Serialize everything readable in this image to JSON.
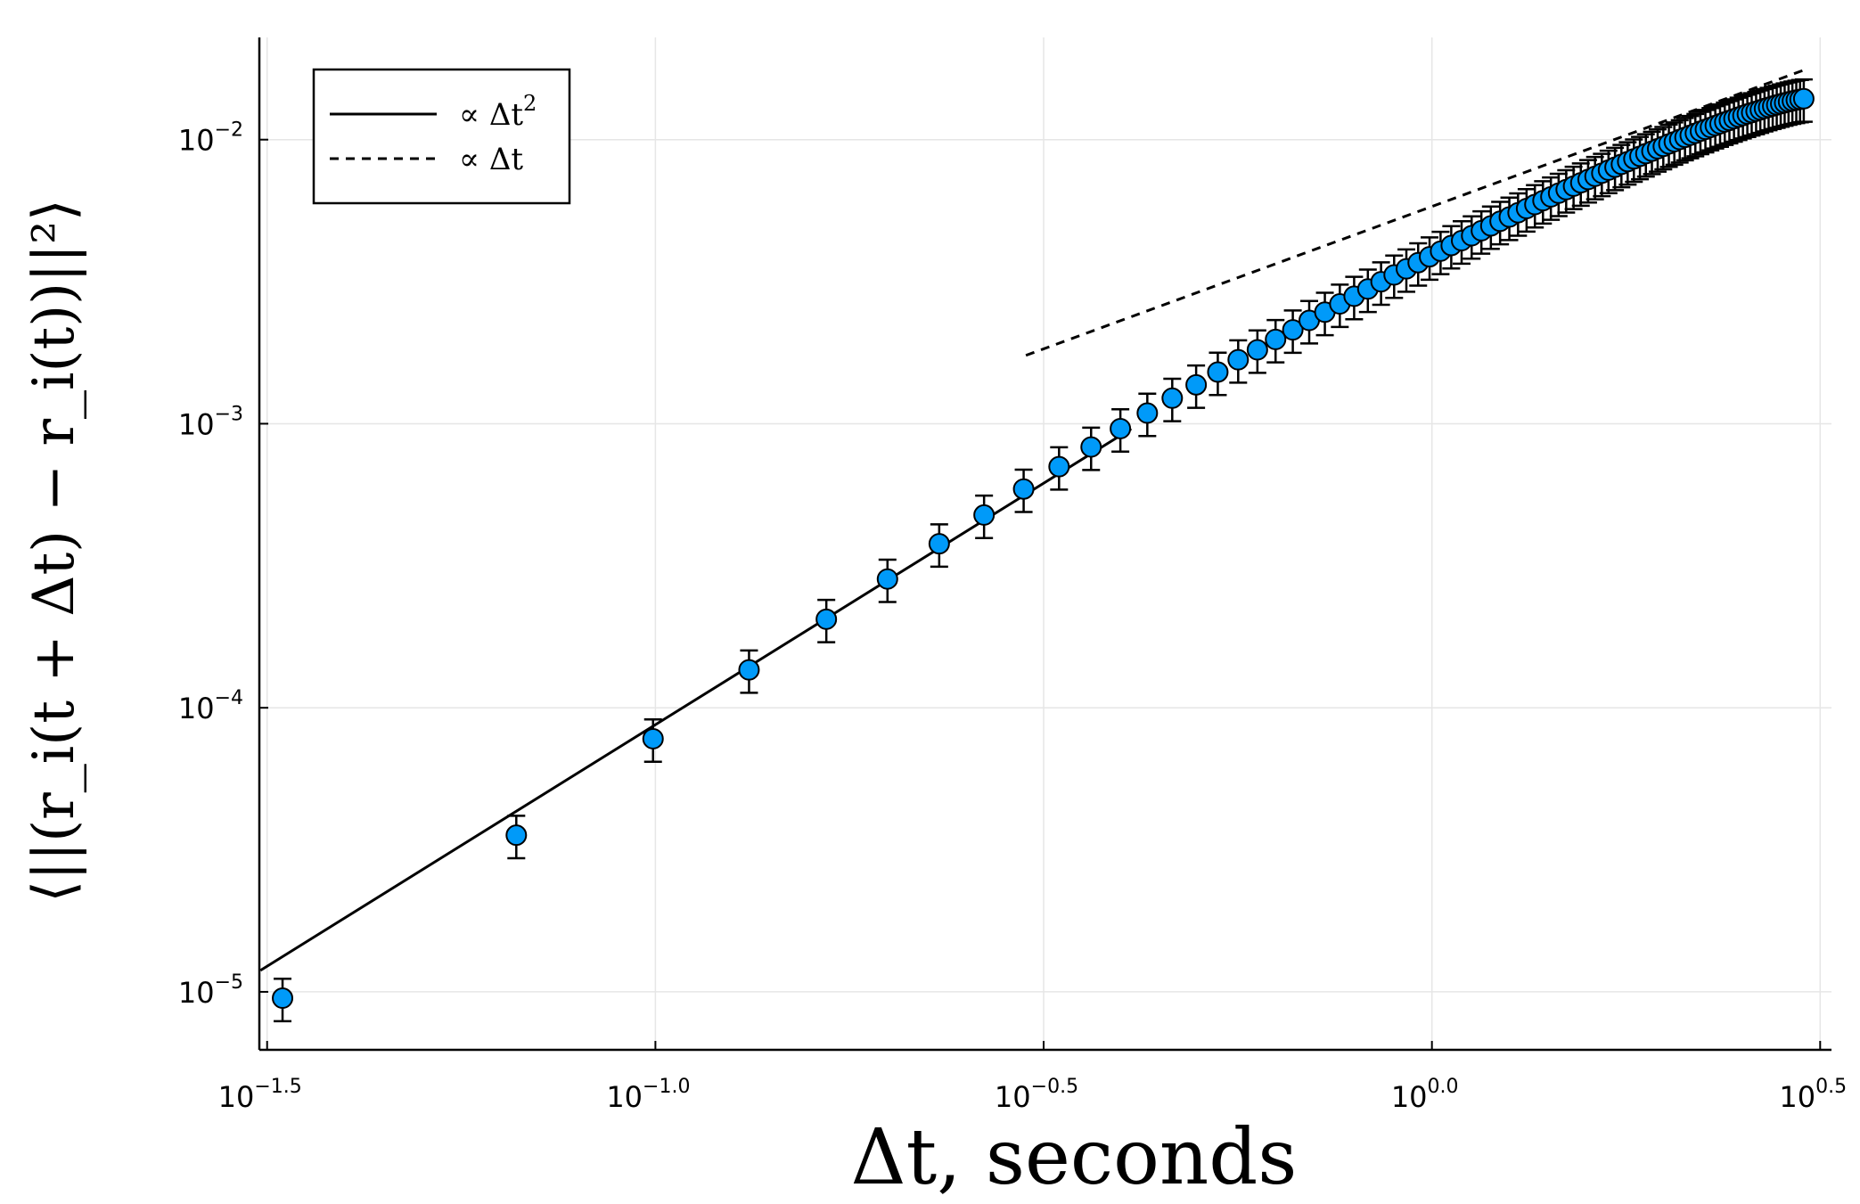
{
  "chart_data": {
    "type": "scatter",
    "xscale": "log10",
    "yscale": "log10",
    "grid": true,
    "legend_position": "top-left",
    "xlabel": "Δt, seconds",
    "ylabel": "⟨||(r_i(t + Δt) − r_i(t))||²⟩",
    "xlim": [
      0.0309,
      3.27
    ],
    "ylim": [
      6.25e-06,
      0.0229
    ],
    "xticks": [
      {
        "value": 0.03162,
        "base": "10",
        "exp": "−1.5"
      },
      {
        "value": 0.1,
        "base": "10",
        "exp": "−1.0"
      },
      {
        "value": 0.3162,
        "base": "10",
        "exp": "−0.5"
      },
      {
        "value": 1.0,
        "base": "10",
        "exp": "0.0"
      },
      {
        "value": 3.162,
        "base": "10",
        "exp": "0.5"
      }
    ],
    "yticks": [
      {
        "value": 1e-05,
        "base": "10",
        "exp": "−5"
      },
      {
        "value": 0.0001,
        "base": "10",
        "exp": "−4"
      },
      {
        "value": 0.001,
        "base": "10",
        "exp": "−3"
      },
      {
        "value": 0.01,
        "base": "10",
        "exp": "−2"
      }
    ],
    "legend": [
      {
        "label": "∝ Δt",
        "exp": "2",
        "style": "solid"
      },
      {
        "label": "∝ Δt",
        "exp": "",
        "style": "dashed"
      }
    ],
    "reference_lines": [
      {
        "style": "solid",
        "x": [
          0.031,
          0.41
        ],
        "y": [
          1.19e-05,
          0.00096
        ]
      },
      {
        "style": "dashed",
        "x": [
          0.3,
          3.0
        ],
        "y": [
          0.00174,
          0.0175
        ]
      }
    ],
    "marker_color": "#009AF9",
    "series": [
      {
        "x": [
          0.0331,
          0.0662,
          0.0993,
          0.132,
          0.166,
          0.199,
          0.232,
          0.265,
          0.298,
          0.331,
          0.364,
          0.397,
          0.43,
          0.463,
          0.497,
          0.53,
          0.563,
          0.596,
          0.629,
          0.662,
          0.695,
          0.728,
          0.761,
          0.794,
          0.827,
          0.86,
          0.894,
          0.927,
          0.96,
          0.993,
          1.026,
          1.059,
          1.092,
          1.125,
          1.158,
          1.191,
          1.224,
          1.258,
          1.291,
          1.324,
          1.357,
          1.39,
          1.423,
          1.456,
          1.489,
          1.522,
          1.555,
          1.589,
          1.622,
          1.655,
          1.688,
          1.721,
          1.754,
          1.787,
          1.82,
          1.853,
          1.886,
          1.92,
          1.953,
          1.986,
          2.019,
          2.052,
          2.085,
          2.118,
          2.151,
          2.184,
          2.217,
          2.25,
          2.284,
          2.317,
          2.35,
          2.383,
          2.416,
          2.449,
          2.482,
          2.515,
          2.548,
          2.581,
          2.615,
          2.648,
          2.681,
          2.714,
          2.747,
          2.78,
          2.813,
          2.846,
          2.879,
          2.912,
          2.946,
          2.979,
          3.012
        ],
        "y": [
          9.5e-06,
          3.56e-05,
          7.78e-05,
          0.000136,
          0.000205,
          0.000284,
          0.000378,
          0.000477,
          0.000589,
          0.000706,
          0.000828,
          0.000961,
          0.00109,
          0.00123,
          0.00137,
          0.00152,
          0.00168,
          0.00182,
          0.00198,
          0.00214,
          0.00231,
          0.00247,
          0.00264,
          0.00281,
          0.00298,
          0.00316,
          0.00334,
          0.00351,
          0.00369,
          0.00387,
          0.00405,
          0.00424,
          0.00441,
          0.00459,
          0.00478,
          0.00497,
          0.00516,
          0.00534,
          0.00553,
          0.00572,
          0.00591,
          0.0061,
          0.00629,
          0.00648,
          0.00667,
          0.00686,
          0.00705,
          0.00724,
          0.00743,
          0.00762,
          0.00781,
          0.008,
          0.00819,
          0.00837,
          0.00856,
          0.00874,
          0.00893,
          0.00911,
          0.00929,
          0.00947,
          0.00966,
          0.00983,
          0.01001,
          0.01019,
          0.01036,
          0.01053,
          0.01071,
          0.01087,
          0.01104,
          0.01121,
          0.01137,
          0.01154,
          0.01169,
          0.01185,
          0.01201,
          0.01216,
          0.01231,
          0.01245,
          0.01259,
          0.01273,
          0.01287,
          0.013,
          0.01313,
          0.01325,
          0.01337,
          0.01348,
          0.01359,
          0.01369,
          0.01378,
          0.01386,
          0.01393
        ],
        "rel_error": 0.17
      }
    ]
  }
}
